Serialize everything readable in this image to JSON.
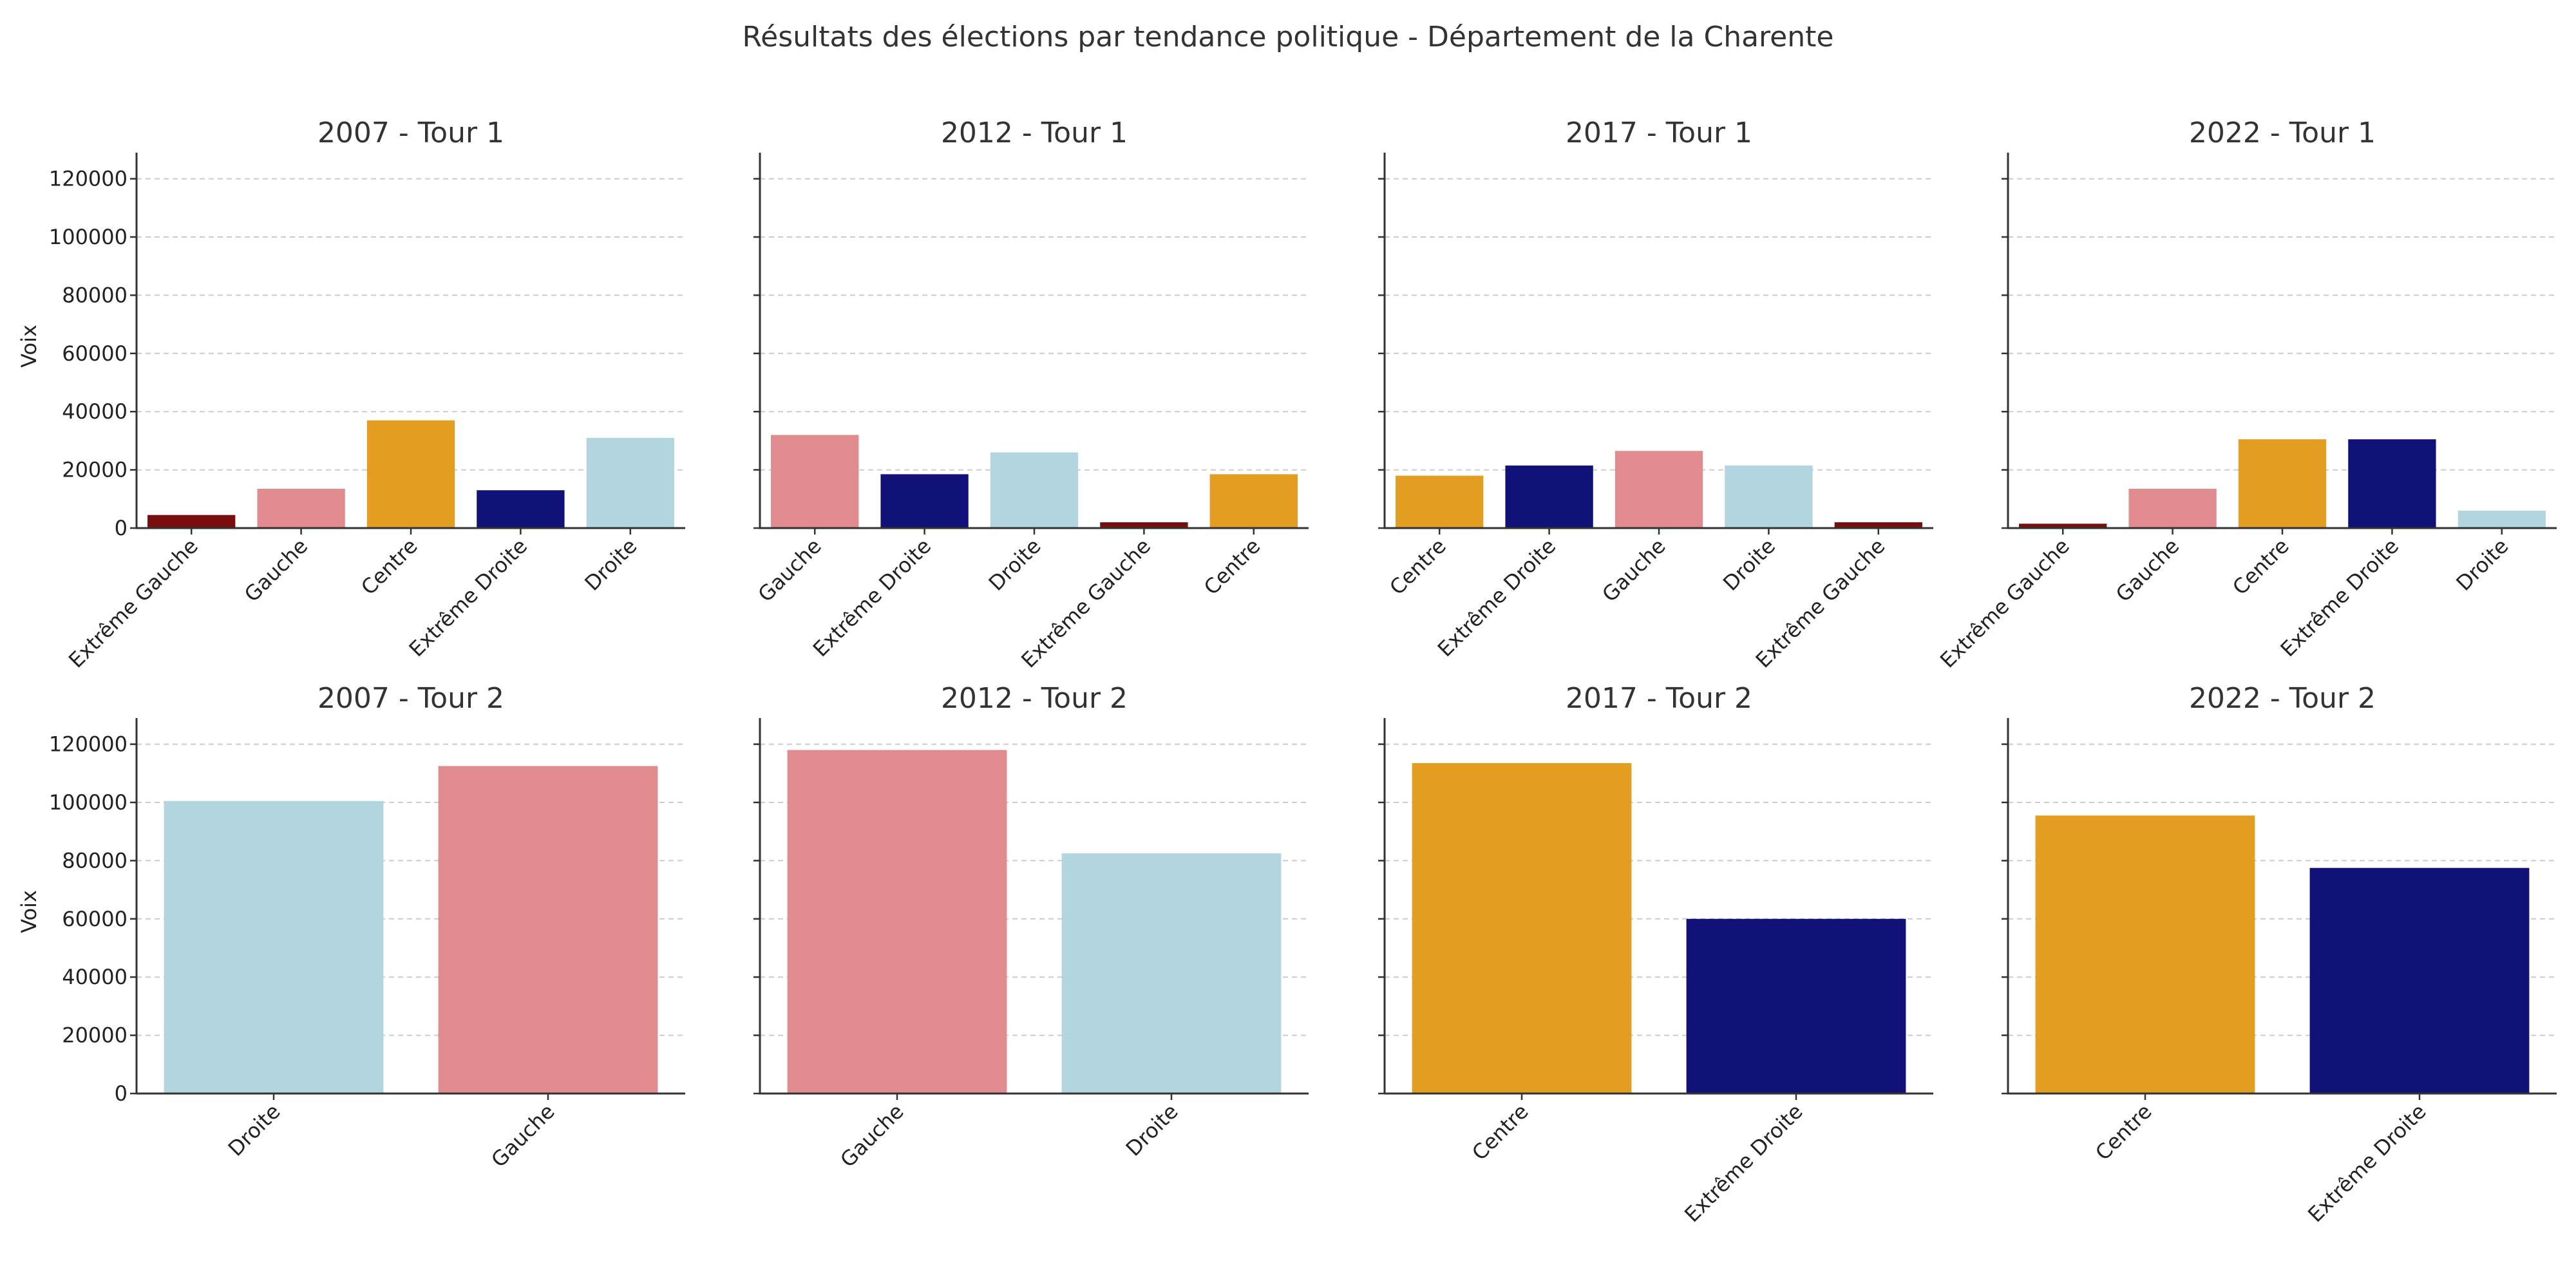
{
  "chart_data": {
    "title": "Résultats des élections par tendance politique - Département de la Charente",
    "type": "bar",
    "ylim": [
      0,
      125000
    ],
    "yticks": [
      0,
      20000,
      40000,
      60000,
      80000,
      100000,
      120000
    ],
    "ylabel": "Voix",
    "grid": "y-dashed",
    "colors": {
      "Extrême Gauche": "#7a0e0e",
      "Gauche": "#e08c8e",
      "Centre": "#e39d21",
      "Extrême Droite": "#111278",
      "Droite": "#b3d5df"
    },
    "subplots": [
      {
        "title": "2007 - Tour 1",
        "categories": [
          "Extrême Gauche",
          "Gauche",
          "Centre",
          "Extrême Droite",
          "Droite"
        ],
        "values": [
          4500,
          13500,
          37000,
          13000,
          31000
        ]
      },
      {
        "title": "2012 - Tour 1",
        "categories": [
          "Gauche",
          "Extrême Droite",
          "Droite",
          "Extrême Gauche",
          "Centre"
        ],
        "values": [
          32000,
          18500,
          26000,
          2000,
          18500
        ]
      },
      {
        "title": "2017 - Tour 1",
        "categories": [
          "Centre",
          "Extrême Droite",
          "Gauche",
          "Droite",
          "Extrême Gauche"
        ],
        "values": [
          18000,
          21500,
          26500,
          21500,
          2000
        ]
      },
      {
        "title": "2022 - Tour 1",
        "categories": [
          "Extrême Gauche",
          "Gauche",
          "Centre",
          "Extrême Droite",
          "Droite"
        ],
        "values": [
          1500,
          13500,
          30500,
          30500,
          6000
        ]
      },
      {
        "title": "2007 - Tour 2",
        "categories": [
          "Droite",
          "Gauche"
        ],
        "values": [
          100500,
          112500
        ]
      },
      {
        "title": "2012 - Tour 2",
        "categories": [
          "Gauche",
          "Droite"
        ],
        "values": [
          118000,
          82500
        ]
      },
      {
        "title": "2017 - Tour 2",
        "categories": [
          "Centre",
          "Extrême Droite"
        ],
        "values": [
          113500,
          60000
        ]
      },
      {
        "title": "2022 - Tour 2",
        "categories": [
          "Centre",
          "Extrême Droite"
        ],
        "values": [
          95500,
          77500
        ]
      }
    ]
  }
}
